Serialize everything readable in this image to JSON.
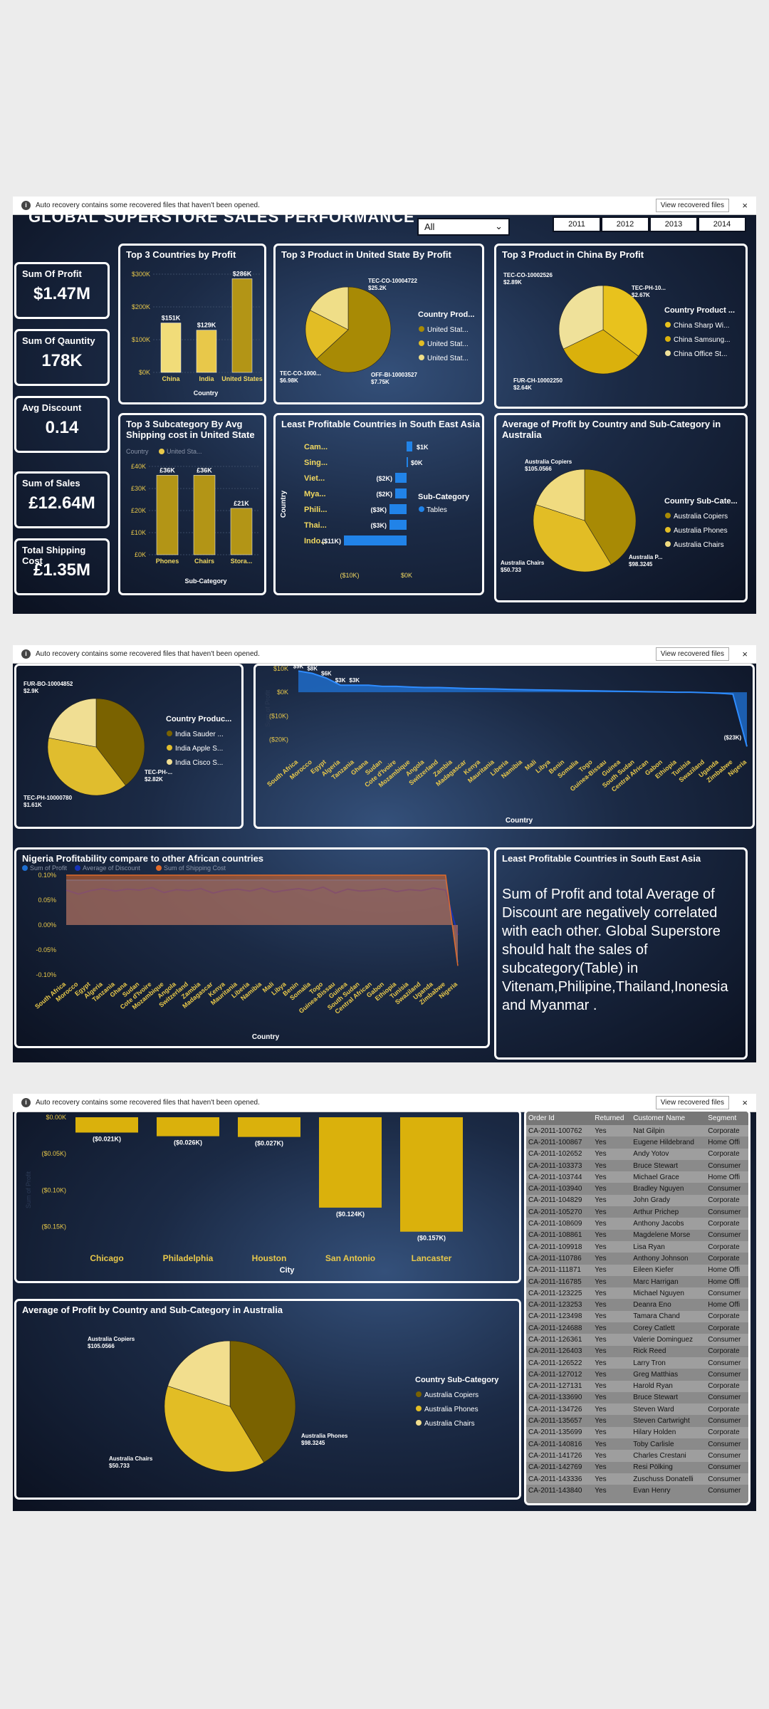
{
  "notification": {
    "text": "Auto recovery contains some recovered files that haven't been opened.",
    "button": "View recovered files",
    "info_icon": "i",
    "close": "×"
  },
  "kpis": [
    {
      "label": "Sum Of Profit",
      "value": "$1.47M"
    },
    {
      "label": "Sum Of Qauntity",
      "value": "178K"
    },
    {
      "label": "Avg Discount",
      "value": "0.14"
    },
    {
      "label": "Sum of Sales",
      "value": "£12.64M"
    },
    {
      "label": "Total Shipping Cost",
      "value": "£1.35M"
    }
  ],
  "header": {
    "title": "GLOBAL SUPERSTORE SALES PERFORMANCE",
    "slicer": "All",
    "years": [
      "2011",
      "2012",
      "2013",
      "2014"
    ]
  },
  "insight_panel": {
    "title": "Least Profitable Countries in South East Asia",
    "text": "Sum of Profit and total Average of Discount are negatively correlated with each other. Global Superstore should halt the sales of subcategory(Table) in Vitenam,Philipine,Thailand,Inonesia and Myanmar ."
  },
  "chart_data": [
    {
      "id": "top3countries",
      "type": "bar",
      "title": "Top 3 Countries by Profit",
      "xlabel": "Country",
      "ylabel": "",
      "categories": [
        "China",
        "India",
        "United States"
      ],
      "values": [
        151,
        129,
        286
      ],
      "labels": [
        "$151K",
        "$129K",
        "$286K"
      ],
      "ylim": [
        0,
        300
      ],
      "yticks": [
        "$0K",
        "$100K",
        "$200K",
        "$300K"
      ],
      "colors": [
        "#f1dc79",
        "#e8c84a",
        "#b39516"
      ]
    },
    {
      "id": "top3us",
      "type": "pie",
      "title": "Top 3 Product in United State By Profit",
      "values": [
        25.2,
        7.75,
        6.98
      ],
      "labels": [
        "TEC-CO-10004722 $25.2K",
        "OFF-BI-10003527 $7.75K",
        "TEC-CO-1000... $6.98K"
      ],
      "legend_title": "Country Prod...",
      "legend": [
        "United Stat...",
        "United Stat...",
        "United Stat..."
      ],
      "colors": [
        "#a88a05",
        "#e2bd25",
        "#efde88"
      ]
    },
    {
      "id": "top3china",
      "type": "pie",
      "title": "Top 3 Product in China By Profit",
      "values": [
        2.89,
        2.67,
        2.64
      ],
      "labels": [
        "TEC-CO-10002526 $2.89K",
        "TEC-PH-10... $2.67K",
        "FUR-CH-10002250 $2.64K"
      ],
      "legend_title": "Country Product ...",
      "legend": [
        "China Sharp Wi...",
        "China Samsung...",
        "China Office St..."
      ],
      "colors": [
        "#e8c21d",
        "#dab10c",
        "#efe19a"
      ]
    },
    {
      "id": "subcat_ship",
      "type": "bar",
      "title": "Top 3 Subcategory By Avg Shipping cost in United State",
      "xlabel": "Sub-Category",
      "ylabel": "",
      "categories": [
        "Phones",
        "Chairs",
        "Stora..."
      ],
      "values": [
        36,
        36,
        21
      ],
      "labels": [
        "£36K",
        "£36K",
        "£21K"
      ],
      "ylim": [
        0,
        40
      ],
      "yticks": [
        "£0K",
        "£10K",
        "£20K",
        "£30K",
        "£40K"
      ],
      "legend_title": "Country",
      "legend": [
        "United Sta..."
      ]
    },
    {
      "id": "sea_least",
      "type": "bar",
      "title": "Least Profitable Countries in South East Asia",
      "xlabel": "",
      "ylabel": "Country",
      "categories": [
        "Cam...",
        "Sing...",
        "Viet...",
        "Mya...",
        "Phili...",
        "Thai...",
        "Indo..."
      ],
      "values": [
        1,
        0,
        -2,
        -2,
        -3,
        -3,
        -11
      ],
      "labels": [
        "$1K",
        "$0K",
        "($2K)",
        "($2K)",
        "($3K)",
        "($3K)",
        "($11K)"
      ],
      "xticks": [
        "($10K)",
        "$0K"
      ],
      "legend_title": "Sub-Category",
      "legend": [
        "Tables"
      ]
    },
    {
      "id": "aus_small",
      "type": "pie",
      "title": "Average of Profit by Country and Sub-Category in Australia",
      "values": [
        105.0566,
        98.3245,
        50.733
      ],
      "labels": [
        "Australia Copiers $105.0566",
        "Australia P... $98.3245",
        "Australia Chairs $50.733"
      ],
      "legend_title": "Country Sub-Cate...",
      "legend": [
        "Australia Copiers",
        "Australia Phones",
        "Australia Chairs"
      ],
      "colors": [
        "#a88a05",
        "#e2bd25",
        "#f0db80"
      ]
    },
    {
      "id": "india_pie",
      "type": "pie",
      "title": "",
      "values": [
        2.9,
        2.82,
        1.61
      ],
      "labels": [
        "FUR-BO-10004852 $2.9K",
        "TEC-PH-... $2.82K",
        "TEC-PH-10000780 $1.61K"
      ],
      "legend_title": "Country Produc...",
      "legend": [
        "India Sauder ...",
        "India Apple S...",
        "India Cisco S..."
      ],
      "colors": [
        "#7a6200",
        "#e0bd2e",
        "#f0de93"
      ]
    },
    {
      "id": "africa_profit",
      "type": "area",
      "title": "",
      "xlabel": "Country",
      "ylabel": "Sum of Profit",
      "categories": [
        "South Africa",
        "Morocco",
        "Egypt",
        "Algeria",
        "Tanzania",
        "Ghana",
        "Sudan",
        "Cote d'Ivoire",
        "Mozambique",
        "Angola",
        "Switzerland",
        "Zambia",
        "Madagascar",
        "Kenya",
        "Mauritania",
        "Liberia",
        "Namibia",
        "Mali",
        "Libya",
        "Benin",
        "Somalia",
        "Togo",
        "Guinea-Bissau",
        "Guinea",
        "South Sudan",
        "Central African",
        "Gabon",
        "Ethiopia",
        "Tunisia",
        "Swaziland",
        "Uganda",
        "Zimbabwe",
        "Nigeria"
      ],
      "values": [
        9,
        8,
        6,
        3,
        3,
        3,
        2.5,
        2.5,
        2.2,
        2,
        2,
        1.8,
        1.6,
        1.5,
        1.4,
        1.2,
        1.1,
        1,
        0.9,
        0.8,
        0.7,
        0.6,
        0.5,
        0.4,
        0.3,
        0.2,
        0.1,
        0,
        0,
        -0.2,
        -0.4,
        -0.8,
        -23
      ],
      "labels": [
        "$9K",
        "$8K",
        "$6K",
        "$3K",
        "$3K",
        "",
        "",
        "",
        "",
        "",
        "",
        "",
        "",
        "",
        "",
        "",
        "",
        "",
        "",
        "",
        "",
        "",
        "",
        "",
        "",
        "",
        "",
        "",
        "",
        "",
        "",
        "",
        "($23K)"
      ],
      "ylim": [
        -25,
        10
      ],
      "yticks": [
        "($20K)",
        "($10K)",
        "$0K",
        "$10K"
      ]
    },
    {
      "id": "nigeria_compare",
      "type": "line",
      "title": "Nigeria Profitability compare to other African countries",
      "xlabel": "Country",
      "ylabel": "",
      "legend": [
        "Sum of Profit",
        "Average of Discount",
        "Sum of Shipping Cost"
      ],
      "yticks": [
        "-0.10%",
        "-0.05%",
        "0.00%",
        "0.05%",
        "0.10%"
      ],
      "ylim": [
        -0.1,
        0.1
      ],
      "categories": [
        "South Africa",
        "Morocco",
        "Egypt",
        "Algeria",
        "Tanzania",
        "Ghana",
        "Sudan",
        "Cote d'Ivoire",
        "Mozambique",
        "Angola",
        "Switzerland",
        "Zambia",
        "Madagascar",
        "Kenya",
        "Mauritania",
        "Liberia",
        "Namibia",
        "Mali",
        "Libya",
        "Benin",
        "Somalia",
        "Togo",
        "Guinea-Bissau",
        "Guinea",
        "South Sudan",
        "Central African",
        "Gabon",
        "Ethiopia",
        "Tunisia",
        "Swaziland",
        "Uganda",
        "Zimbabwe",
        "Nigeria"
      ],
      "series": [
        {
          "name": "Sum of Profit",
          "values": [
            0.09,
            0.09,
            0.09,
            0.09,
            0.09,
            0.09,
            0.09,
            0.09,
            0.09,
            0.09,
            0.09,
            0.09,
            0.09,
            0.09,
            0.09,
            0.09,
            0.09,
            0.09,
            0.09,
            0.09,
            0.09,
            0.09,
            0.09,
            0.09,
            0.09,
            0.09,
            0.09,
            0.09,
            0.09,
            0.09,
            0.09,
            0.09,
            -0.075
          ]
        },
        {
          "name": "Average of Discount",
          "values": [
            0.07,
            0.062,
            0.069,
            0.073,
            0.068,
            0.072,
            0.07,
            0.075,
            0.065,
            0.071,
            0.069,
            0.073,
            0.064,
            0.07,
            0.072,
            0.068,
            0.074,
            0.066,
            0.07,
            0.073,
            0.069,
            0.076,
            0.064,
            0.072,
            0.068,
            0.07,
            0.073,
            0.067,
            0.071,
            0.069,
            0.074,
            0.07,
            -0.02
          ]
        },
        {
          "name": "Sum of Shipping Cost",
          "values": [
            0.1,
            0.1,
            0.1,
            0.1,
            0.1,
            0.1,
            0.1,
            0.1,
            0.1,
            0.1,
            0.1,
            0.1,
            0.1,
            0.1,
            0.1,
            0.1,
            0.1,
            0.1,
            0.1,
            0.1,
            0.1,
            0.1,
            0.1,
            0.1,
            0.1,
            0.1,
            0.1,
            0.1,
            0.1,
            0.1,
            0.1,
            0.1,
            -0.082
          ]
        }
      ]
    },
    {
      "id": "cities",
      "type": "bar",
      "title": "",
      "xlabel": "City",
      "ylabel": "Sum of Profit",
      "categories": [
        "Chicago",
        "Philadelphia",
        "Houston",
        "San Antonio",
        "Lancaster"
      ],
      "values": [
        -0.021,
        -0.026,
        -0.027,
        -0.124,
        -0.157
      ],
      "labels": [
        "($0.021K)",
        "($0.026K)",
        "($0.027K)",
        "($0.124K)",
        "($0.157K)"
      ],
      "ylim": [
        -0.17,
        0
      ],
      "yticks": [
        "$0.00K",
        "($0.05K)",
        "($0.10K)",
        "($0.15K)"
      ]
    },
    {
      "id": "aus_big",
      "type": "pie",
      "title": "Average of Profit by Country and Sub-Category in Australia",
      "values": [
        105.0566,
        98.3245,
        50.733
      ],
      "labels": [
        "Australia Copiers $105.0566",
        "Australia Phones $98.3245",
        "Australia Chairs $50.733"
      ],
      "legend_title": "Country Sub-Category",
      "legend": [
        "Australia Copiers",
        "Australia Phones",
        "Australia Chairs"
      ],
      "colors": [
        "#7a6200",
        "#e2bd25",
        "#f2de8e"
      ]
    }
  ],
  "table": {
    "headers": [
      "Order Id",
      "Returned",
      "Customer Name",
      "Segment"
    ],
    "rows": [
      [
        "CA-2011-100762",
        "Yes",
        "Nat Gilpin",
        "Corporate"
      ],
      [
        "CA-2011-100867",
        "Yes",
        "Eugene Hildebrand",
        "Home Offi"
      ],
      [
        "CA-2011-102652",
        "Yes",
        "Andy Yotov",
        "Corporate"
      ],
      [
        "CA-2011-103373",
        "Yes",
        "Bruce Stewart",
        "Consumer"
      ],
      [
        "CA-2011-103744",
        "Yes",
        "Michael Grace",
        "Home Offi"
      ],
      [
        "CA-2011-103940",
        "Yes",
        "Bradley Nguyen",
        "Consumer"
      ],
      [
        "CA-2011-104829",
        "Yes",
        "John Grady",
        "Corporate"
      ],
      [
        "CA-2011-105270",
        "Yes",
        "Arthur Prichep",
        "Consumer"
      ],
      [
        "CA-2011-108609",
        "Yes",
        "Anthony Jacobs",
        "Corporate"
      ],
      [
        "CA-2011-108861",
        "Yes",
        "Magdelene Morse",
        "Consumer"
      ],
      [
        "CA-2011-109918",
        "Yes",
        "Lisa Ryan",
        "Corporate"
      ],
      [
        "CA-2011-110786",
        "Yes",
        "Anthony Johnson",
        "Corporate"
      ],
      [
        "CA-2011-111871",
        "Yes",
        "Eileen Kiefer",
        "Home Offi"
      ],
      [
        "CA-2011-116785",
        "Yes",
        "Marc Harrigan",
        "Home Offi"
      ],
      [
        "CA-2011-123225",
        "Yes",
        "Michael Nguyen",
        "Consumer"
      ],
      [
        "CA-2011-123253",
        "Yes",
        "Deanra Eno",
        "Home Offi"
      ],
      [
        "CA-2011-123498",
        "Yes",
        "Tamara Chand",
        "Corporate"
      ],
      [
        "CA-2011-124688",
        "Yes",
        "Corey Catlett",
        "Corporate"
      ],
      [
        "CA-2011-126361",
        "Yes",
        "Valerie Dominguez",
        "Consumer"
      ],
      [
        "CA-2011-126403",
        "Yes",
        "Rick Reed",
        "Corporate"
      ],
      [
        "CA-2011-126522",
        "Yes",
        "Larry Tron",
        "Consumer"
      ],
      [
        "CA-2011-127012",
        "Yes",
        "Greg Matthias",
        "Consumer"
      ],
      [
        "CA-2011-127131",
        "Yes",
        "Harold Ryan",
        "Corporate"
      ],
      [
        "CA-2011-133690",
        "Yes",
        "Bruce Stewart",
        "Consumer"
      ],
      [
        "CA-2011-134726",
        "Yes",
        "Steven Ward",
        "Corporate"
      ],
      [
        "CA-2011-135657",
        "Yes",
        "Steven Cartwright",
        "Consumer"
      ],
      [
        "CA-2011-135699",
        "Yes",
        "Hilary Holden",
        "Corporate"
      ],
      [
        "CA-2011-140816",
        "Yes",
        "Toby Carlisle",
        "Consumer"
      ],
      [
        "CA-2011-141726",
        "Yes",
        "Charles Crestani",
        "Consumer"
      ],
      [
        "CA-2011-142769",
        "Yes",
        "Resi Pölking",
        "Consumer"
      ],
      [
        "CA-2011-143336",
        "Yes",
        "Zuschuss Donatelli",
        "Consumer"
      ],
      [
        "CA-2011-143840",
        "Yes",
        "Evan Henry",
        "Consumer"
      ]
    ]
  }
}
